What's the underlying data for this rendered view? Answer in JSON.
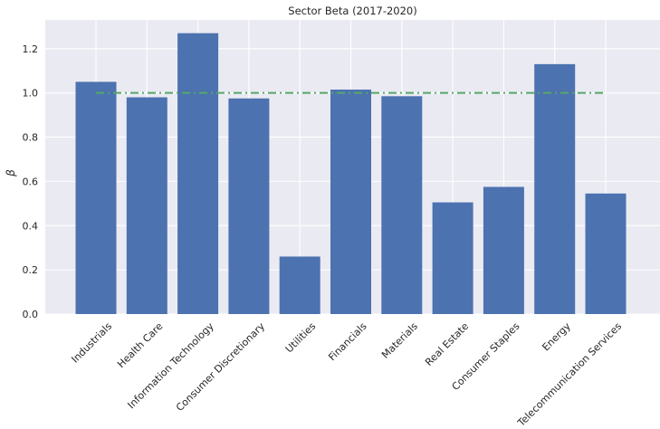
{
  "chart_data": {
    "type": "bar",
    "title": "Sector Beta (2017-2020)",
    "xlabel": "",
    "ylabel": "β",
    "categories": [
      "Industrials",
      "Health Care",
      "Information Technology",
      "Consumer Discretionary",
      "Utilities",
      "Financials",
      "Materials",
      "Real Estate",
      "Consumer Staples",
      "Energy",
      "Telecommunication Services"
    ],
    "values": [
      1.05,
      0.98,
      1.27,
      0.975,
      0.26,
      1.015,
      0.985,
      0.505,
      0.575,
      1.13,
      0.545
    ],
    "ylim": [
      0,
      1.33
    ],
    "yticks": [
      "0.0",
      "0.2",
      "0.4",
      "0.6",
      "0.8",
      "1.0",
      "1.2"
    ],
    "reference_line": {
      "y": 1.0,
      "style": "dash-dot",
      "color": "#55a868"
    },
    "bar_color": "#4c72b0",
    "background_color": "#eaeaf2",
    "grid": true,
    "legend": null
  }
}
